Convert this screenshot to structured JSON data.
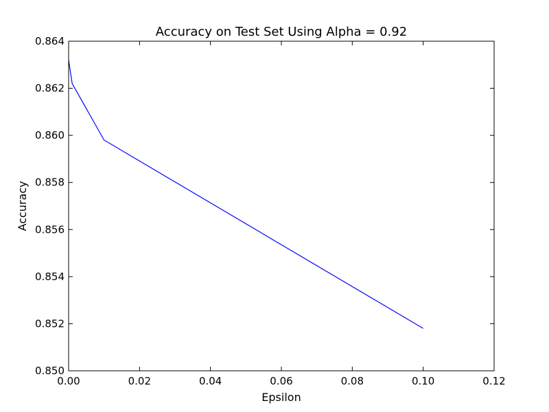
{
  "chart_data": {
    "type": "line",
    "title": "Accuracy on Test Set Using Alpha = 0.92",
    "xlabel": "Epsilon",
    "ylabel": "Accuracy",
    "xlim": [
      0.0,
      0.12
    ],
    "ylim": [
      0.85,
      0.864
    ],
    "x_ticks": [
      0.0,
      0.02,
      0.04,
      0.06,
      0.08,
      0.1,
      0.12
    ],
    "x_tick_labels": [
      "0.00",
      "0.02",
      "0.04",
      "0.06",
      "0.08",
      "0.10",
      "0.12"
    ],
    "y_ticks": [
      0.85,
      0.852,
      0.854,
      0.856,
      0.858,
      0.86,
      0.862,
      0.864
    ],
    "y_tick_labels": [
      "0.850",
      "0.852",
      "0.854",
      "0.856",
      "0.858",
      "0.860",
      "0.862",
      "0.864"
    ],
    "grid": false,
    "series": [
      {
        "color": "#0000ff",
        "x": [
          0.0,
          0.001,
          0.01,
          0.1
        ],
        "y": [
          0.8632,
          0.8622,
          0.8598,
          0.8518
        ]
      }
    ]
  }
}
